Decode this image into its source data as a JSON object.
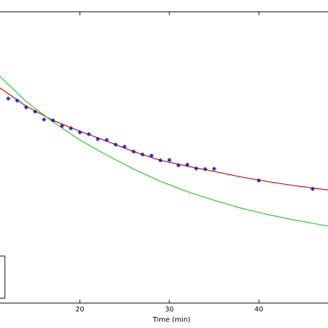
{
  "chart_data": {
    "type": "scatter",
    "xlabel": "Time (min)",
    "xlim": [
      11,
      47.8
    ],
    "ylim": [
      0,
      1
    ],
    "x_ticks": [
      20,
      30,
      40
    ],
    "grid": false,
    "series": [
      {
        "kind": "markers",
        "marker": "star",
        "color": "#1f1fbf",
        "points": [
          [
            12,
            0.702
          ],
          [
            13,
            0.695
          ],
          [
            14,
            0.672
          ],
          [
            15,
            0.657
          ],
          [
            16,
            0.63
          ],
          [
            17,
            0.627
          ],
          [
            18,
            0.608
          ],
          [
            19,
            0.6
          ],
          [
            20,
            0.586
          ],
          [
            21,
            0.58
          ],
          [
            22,
            0.563
          ],
          [
            23,
            0.56
          ],
          [
            24,
            0.544
          ],
          [
            25,
            0.537
          ],
          [
            26,
            0.52
          ],
          [
            27,
            0.51
          ],
          [
            28,
            0.506
          ],
          [
            29,
            0.49
          ],
          [
            30,
            0.491
          ],
          [
            31,
            0.473
          ],
          [
            32,
            0.475
          ],
          [
            33,
            0.462
          ],
          [
            34,
            0.46
          ],
          [
            35,
            0.461
          ],
          [
            40,
            0.421
          ],
          [
            46,
            0.392
          ]
        ]
      },
      {
        "kind": "line",
        "color": "#cc0000",
        "points": [
          [
            11,
            0.74
          ],
          [
            14,
            0.676
          ],
          [
            17,
            0.627
          ],
          [
            20,
            0.59
          ],
          [
            23,
            0.556
          ],
          [
            26,
            0.52
          ],
          [
            29,
            0.49
          ],
          [
            32,
            0.47
          ],
          [
            35,
            0.452
          ],
          [
            38,
            0.433
          ],
          [
            41,
            0.417
          ],
          [
            44,
            0.403
          ],
          [
            47.8,
            0.388
          ]
        ]
      },
      {
        "kind": "line",
        "color": "#22cc22",
        "points": [
          [
            11,
            0.78
          ],
          [
            14,
            0.692
          ],
          [
            17,
            0.622
          ],
          [
            20,
            0.56
          ],
          [
            23,
            0.508
          ],
          [
            26,
            0.46
          ],
          [
            29,
            0.418
          ],
          [
            32,
            0.383
          ],
          [
            35,
            0.353
          ],
          [
            38,
            0.326
          ],
          [
            41,
            0.304
          ],
          [
            44,
            0.285
          ],
          [
            47.8,
            0.264
          ]
        ]
      }
    ]
  }
}
